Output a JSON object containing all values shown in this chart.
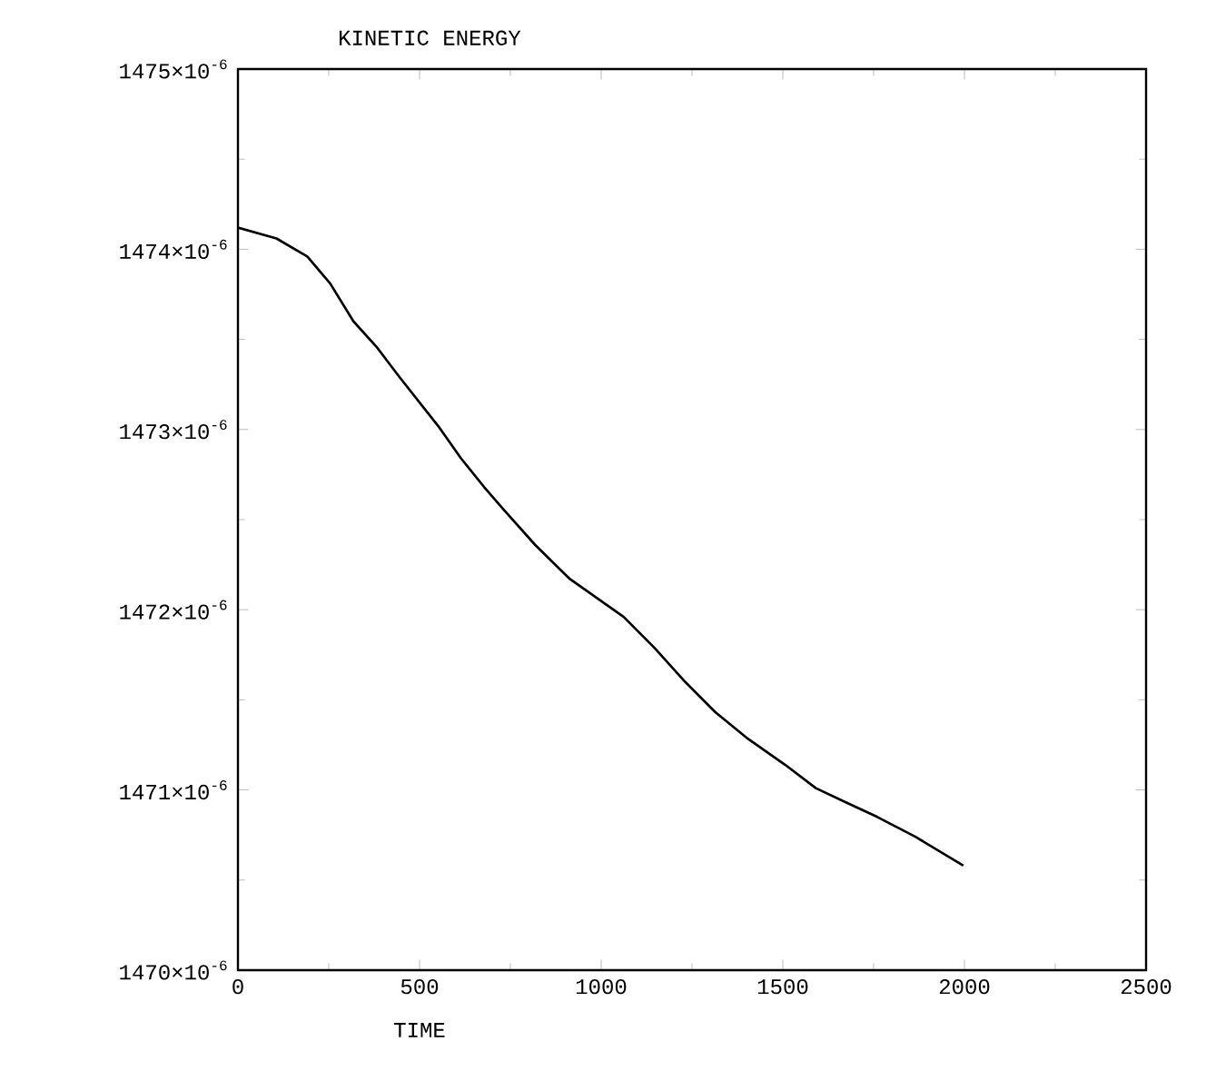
{
  "chart_data": {
    "type": "line",
    "title": "KINETIC ENERGY",
    "xlabel": "TIME",
    "x": [
      0,
      106,
      191,
      254,
      318,
      381,
      445,
      551,
      614,
      678,
      734,
      818,
      914,
      1062,
      1146,
      1231,
      1315,
      1400,
      1506,
      1591,
      1675,
      1760,
      1865,
      1997
    ],
    "values": [
      0.00147412,
      0.00147406,
      0.00147396,
      0.00147381,
      0.0014736,
      0.00147346,
      0.00147329,
      0.00147302,
      0.00147284,
      0.00147268,
      0.00147255,
      0.00147236,
      0.00147217,
      0.00147196,
      0.00147179,
      0.0014716,
      0.00147143,
      0.00147129,
      0.00147114,
      0.00147101,
      0.00147093,
      0.00147085,
      0.00147074,
      0.00147058
    ],
    "color": "#000000",
    "xlim": [
      0,
      2500
    ],
    "ylim": [
      0.00147,
      0.001475
    ],
    "xticks": [
      0,
      500,
      1000,
      1500,
      2000,
      2500
    ],
    "yticks": [
      {
        "value": 0.00147,
        "label": "1470×10$^{-6}$"
      },
      {
        "value": 0.001471,
        "label": "1471×10$^{-6}$"
      },
      {
        "value": 0.001472,
        "label": "1472×10$^{-6}$"
      },
      {
        "value": 0.001473,
        "label": "1473×10$^{-6}$"
      },
      {
        "value": 0.001474,
        "label": "1474×10$^{-6}$"
      },
      {
        "value": 0.001475,
        "label": "1475×10$^{-6}$"
      }
    ],
    "grid": false,
    "marker": "none",
    "line_style": "solid"
  }
}
